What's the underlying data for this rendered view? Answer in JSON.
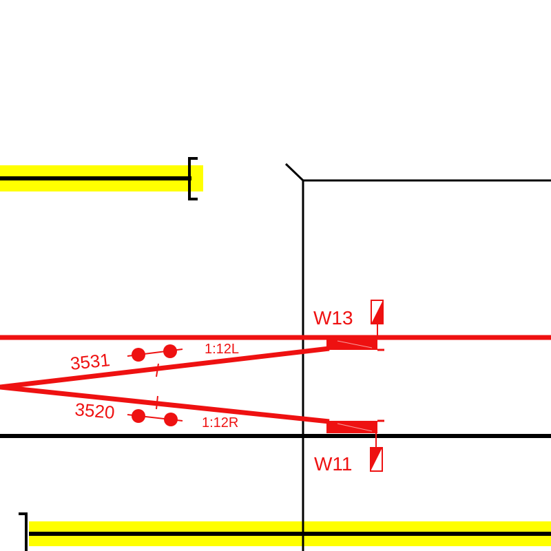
{
  "colors": {
    "active": "#ee1111",
    "track": "#000000",
    "platform": "#ffff00",
    "background": "#ffffff"
  },
  "switches": [
    {
      "id": "W13",
      "position": "occupied",
      "indicator_icon": "half-filled-box-icon"
    },
    {
      "id": "W11",
      "position": "free",
      "indicator_icon": "half-filled-box-icon"
    }
  ],
  "signals": [
    {
      "id": "3531",
      "ratio": "1:12L"
    },
    {
      "id": "3520",
      "ratio": "1:12R"
    }
  ]
}
